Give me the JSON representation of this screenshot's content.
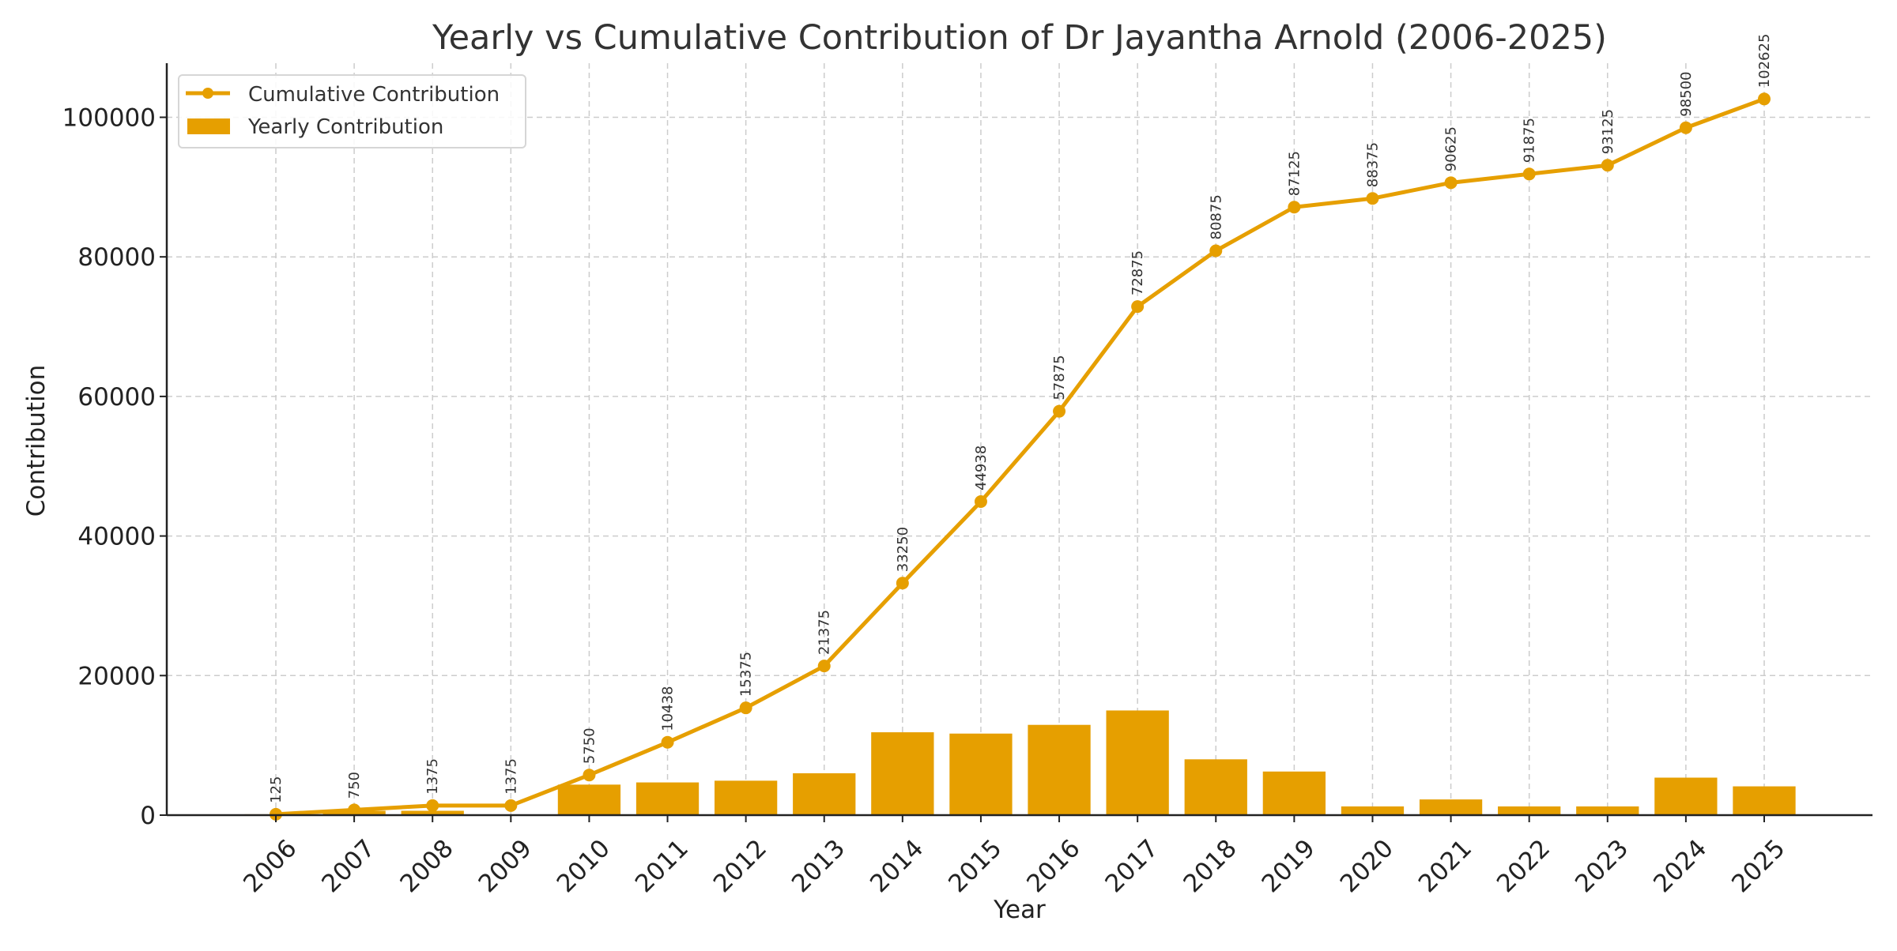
{
  "chart_data": {
    "type": "bar+line",
    "title": "Yearly vs Cumulative Contribution of Dr Jayantha Arnold (2006-2025)",
    "xlabel": "Year",
    "ylabel": "Contribution",
    "categories": [
      "2006",
      "2007",
      "2008",
      "2009",
      "2010",
      "2011",
      "2012",
      "2013",
      "2014",
      "2015",
      "2016",
      "2017",
      "2018",
      "2019",
      "2020",
      "2021",
      "2022",
      "2023",
      "2024",
      "2025"
    ],
    "ylim": [
      0,
      107000
    ],
    "yticks": [
      0,
      20000,
      40000,
      60000,
      80000,
      100000
    ],
    "ytick_labels": [
      "0",
      "20000",
      "40000",
      "60000",
      "80000",
      "100000"
    ],
    "grid": true,
    "legend_position": "top-left",
    "series": [
      {
        "name": "Cumulative Contribution",
        "kind": "line",
        "marker": "circle",
        "color": "#E69F00",
        "values": [
          125,
          750,
          1375,
          1375,
          5750,
          10438,
          15375,
          21375,
          33250,
          44938,
          57875,
          72875,
          80875,
          87125,
          88375,
          90625,
          91875,
          93125,
          98500,
          102625
        ],
        "data_labels": [
          "125",
          "750",
          "1375",
          "1375",
          "5750",
          "10438",
          "15375",
          "21375",
          "33250",
          "44938",
          "57875",
          "72875",
          "80875",
          "87125",
          "88375",
          "90625",
          "91875",
          "93125",
          "98500",
          "102625"
        ]
      },
      {
        "name": "Yearly Contribution",
        "kind": "bar",
        "color": "#E69F00",
        "values": [
          125,
          625,
          625,
          0,
          4375,
          4688,
          4937,
          6000,
          11875,
          11688,
          12937,
          15000,
          8000,
          6250,
          1250,
          2250,
          1250,
          1250,
          5375,
          4125
        ]
      }
    ]
  }
}
